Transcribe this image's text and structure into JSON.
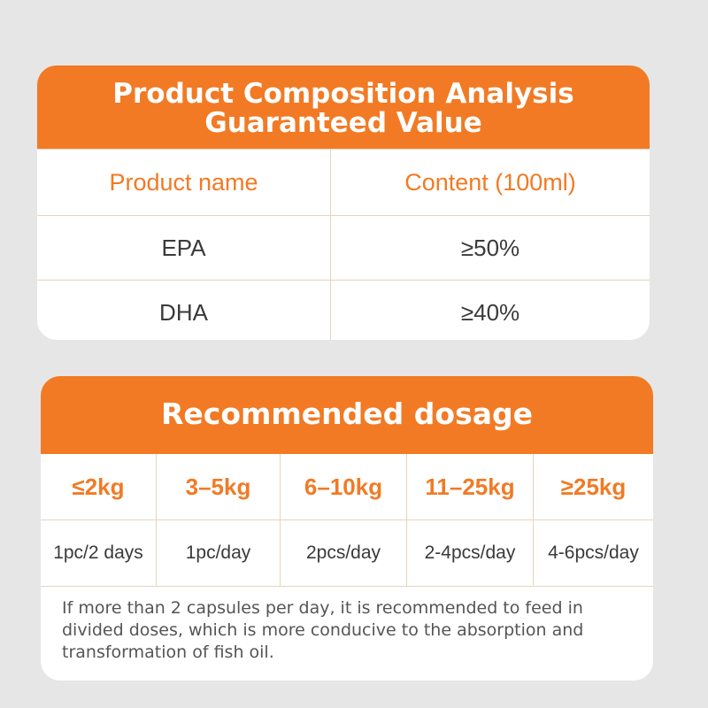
{
  "composition": {
    "title_line1": "Product Composition Analysis",
    "title_line2": "Guaranteed Value",
    "columns": [
      "Product name",
      "Content (100ml)"
    ],
    "rows": [
      {
        "name": "EPA",
        "content": "≥50%"
      },
      {
        "name": "DHA",
        "content": "≥40%"
      }
    ]
  },
  "dosage": {
    "title": "Recommended dosage",
    "columns": [
      {
        "weight": "≤2kg",
        "amount": "1pc/2 days"
      },
      {
        "weight": "3–5kg",
        "amount": "1pc/day"
      },
      {
        "weight": "6–10kg",
        "amount": "2pcs/day"
      },
      {
        "weight": "11–25kg",
        "amount": "2-4pcs/day"
      },
      {
        "weight": "≥25kg",
        "amount": "4-6pcs/day"
      }
    ],
    "note": "If more than 2 capsules per day, it is recommended to feed in divided doses, which is more conducive to the absorption and transformation of fish oil."
  },
  "colors": {
    "accent": "#f27a24",
    "background": "#e6e6e6",
    "card": "#ffffff",
    "text": "#3a3a3a"
  }
}
